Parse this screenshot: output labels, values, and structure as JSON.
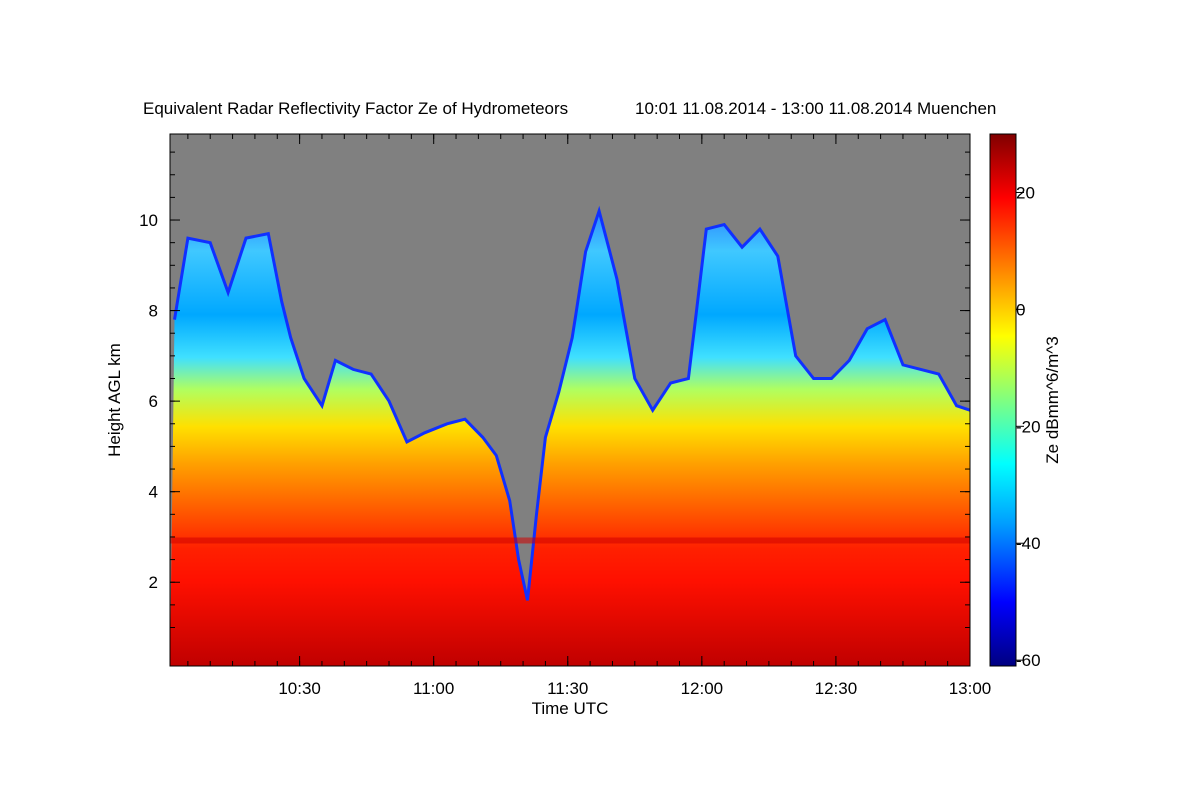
{
  "chart_data": {
    "type": "heatmap",
    "title": "Equivalent Radar Reflectivity Factor Ze of Hydrometeors",
    "subtitle": "10:01 11.08.2014 - 13:00 11.08.2014 Muenchen",
    "xlabel": "Time UTC",
    "ylabel": "Height AGL km",
    "colorbar_label": "Ze dBmm^6/m^3",
    "x_ticks": [
      "10:30",
      "11:00",
      "11:30",
      "12:00",
      "12:30",
      "13:00"
    ],
    "xlim": [
      "10:01",
      "13:00"
    ],
    "y_ticks": [
      2,
      4,
      6,
      8,
      10
    ],
    "ylim": [
      0.15,
      11.9
    ],
    "colorbar_ticks": [
      20,
      0,
      -20,
      -40,
      -60
    ],
    "colorbar_range": [
      -61,
      30
    ],
    "colormap": [
      "#000080",
      "#0000ff",
      "#00a0ff",
      "#00ffff",
      "#80ff80",
      "#ffff00",
      "#ff8000",
      "#ff0000",
      "#800000"
    ],
    "background_color": "#808080",
    "echo_top_km": [
      {
        "time": "10:02",
        "top": 7.8
      },
      {
        "time": "10:05",
        "top": 9.6
      },
      {
        "time": "10:10",
        "top": 9.5
      },
      {
        "time": "10:14",
        "top": 8.4
      },
      {
        "time": "10:18",
        "top": 9.6
      },
      {
        "time": "10:23",
        "top": 9.7
      },
      {
        "time": "10:26",
        "top": 8.2
      },
      {
        "time": "10:28",
        "top": 7.4
      },
      {
        "time": "10:31",
        "top": 6.5
      },
      {
        "time": "10:35",
        "top": 5.9
      },
      {
        "time": "10:38",
        "top": 6.9
      },
      {
        "time": "10:42",
        "top": 6.7
      },
      {
        "time": "10:46",
        "top": 6.6
      },
      {
        "time": "10:50",
        "top": 6.0
      },
      {
        "time": "10:54",
        "top": 5.1
      },
      {
        "time": "10:58",
        "top": 5.3
      },
      {
        "time": "11:03",
        "top": 5.5
      },
      {
        "time": "11:07",
        "top": 5.6
      },
      {
        "time": "11:11",
        "top": 5.2
      },
      {
        "time": "11:14",
        "top": 4.8
      },
      {
        "time": "11:17",
        "top": 3.8
      },
      {
        "time": "11:19",
        "top": 2.5
      },
      {
        "time": "11:21",
        "top": 1.6
      },
      {
        "time": "11:23",
        "top": 3.5
      },
      {
        "time": "11:25",
        "top": 5.2
      },
      {
        "time": "11:28",
        "top": 6.2
      },
      {
        "time": "11:31",
        "top": 7.4
      },
      {
        "time": "11:34",
        "top": 9.3
      },
      {
        "time": "11:37",
        "top": 10.2
      },
      {
        "time": "11:41",
        "top": 8.7
      },
      {
        "time": "11:45",
        "top": 6.5
      },
      {
        "time": "11:49",
        "top": 5.8
      },
      {
        "time": "11:53",
        "top": 6.4
      },
      {
        "time": "11:57",
        "top": 6.5
      },
      {
        "time": "12:01",
        "top": 9.8
      },
      {
        "time": "12:05",
        "top": 9.9
      },
      {
        "time": "12:09",
        "top": 9.4
      },
      {
        "time": "12:13",
        "top": 9.8
      },
      {
        "time": "12:17",
        "top": 9.2
      },
      {
        "time": "12:21",
        "top": 7.0
      },
      {
        "time": "12:25",
        "top": 6.5
      },
      {
        "time": "12:29",
        "top": 6.5
      },
      {
        "time": "12:33",
        "top": 6.9
      },
      {
        "time": "12:37",
        "top": 7.6
      },
      {
        "time": "12:41",
        "top": 7.8
      },
      {
        "time": "12:45",
        "top": 6.8
      },
      {
        "time": "12:49",
        "top": 6.7
      },
      {
        "time": "12:53",
        "top": 6.6
      },
      {
        "time": "12:57",
        "top": 5.9
      },
      {
        "time": "13:00",
        "top": 5.8
      }
    ],
    "melting_layer_km": 2.9
  }
}
